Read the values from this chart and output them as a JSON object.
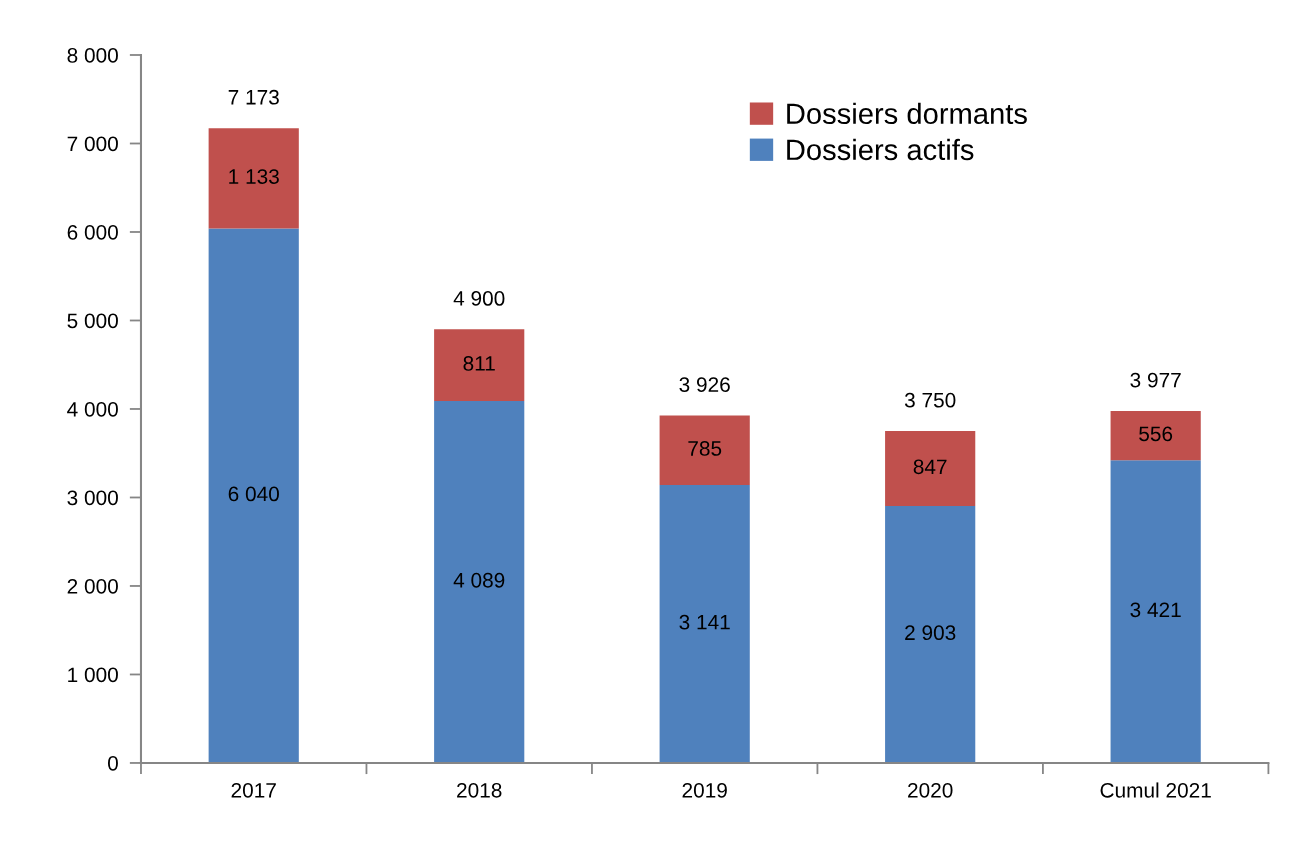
{
  "chart_data": {
    "type": "bar",
    "stacked": true,
    "categories": [
      "2017",
      "2018",
      "2019",
      "2020",
      "Cumul 2021"
    ],
    "series": [
      {
        "name": "Dossiers actifs",
        "color": "#4f81bd",
        "values": [
          6040,
          4089,
          3141,
          2903,
          3421
        ],
        "value_labels": [
          "6 040",
          "4 089",
          "3 141",
          "2 903",
          "3 421"
        ]
      },
      {
        "name": "Dossiers dormants",
        "color": "#c0504d",
        "values": [
          1133,
          811,
          785,
          847,
          556
        ],
        "value_labels": [
          "1 133",
          "811",
          "785",
          "847",
          "556"
        ]
      }
    ],
    "totals": [
      "7 173",
      "4 900",
      "3 926",
      "3 750",
      "3 977"
    ],
    "ylim": [
      0,
      8000
    ],
    "yticks": [
      0,
      {
        "value": 1000,
        "label": "1 000"
      },
      {
        "value": 2000,
        "label": "2 000"
      },
      {
        "value": 3000,
        "label": "3 000"
      },
      {
        "value": 4000,
        "label": "4 000"
      },
      {
        "value": 5000,
        "label": "5 000"
      },
      {
        "value": 6000,
        "label": "6 000"
      },
      {
        "value": 7000,
        "label": "7 000"
      },
      {
        "value": 8000,
        "label": "8 000"
      }
    ],
    "grid": false,
    "legend": "top right"
  }
}
